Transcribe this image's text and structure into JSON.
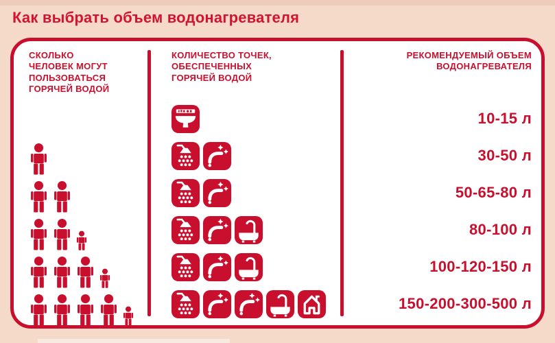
{
  "title": "Как выбрать объем водонагревателя",
  "colors": {
    "background": "#f5d9c9",
    "accent": "#c8102e",
    "title": "#d31431",
    "panel": "#ffffff"
  },
  "table": {
    "columns": [
      {
        "id": "people",
        "header": "СКОЛЬКО\nЧЕЛОВЕК МОГУТ\nПОЛЬЗОВАТЬСЯ\nГОРЯЧЕЙ ВОДОЙ"
      },
      {
        "id": "points",
        "header": "КОЛИЧЕСТВО ТОЧЕК,\nОБЕСПЕЧЕННЫХ\nГОРЯЧЕЙ ВОДОЙ"
      },
      {
        "id": "volume",
        "header": "РЕКОМЕНДУЕМЫЙ ОБЪЕМ\nВОДОНАГРЕВАТЕЛЯ"
      }
    ],
    "rows": [
      {
        "adults": 0,
        "children": 0,
        "points": [
          "washbasin"
        ],
        "volume": "10-15 л"
      },
      {
        "adults": 1,
        "children": 0,
        "points": [
          "shower",
          "faucet"
        ],
        "volume": "30-50 л"
      },
      {
        "adults": 2,
        "children": 0,
        "points": [
          "shower",
          "faucet"
        ],
        "volume": "50-65-80 л"
      },
      {
        "adults": 2,
        "children": 1,
        "points": [
          "shower",
          "faucet",
          "bathtub"
        ],
        "volume": "80-100 л"
      },
      {
        "adults": 3,
        "children": 1,
        "points": [
          "shower",
          "faucet",
          "bathtub"
        ],
        "volume": "100-120-150 л"
      },
      {
        "adults": 4,
        "children": 1,
        "points": [
          "shower",
          "faucet",
          "faucet",
          "bathtub",
          "house"
        ],
        "volume": "150-200-300-500 л"
      }
    ]
  }
}
